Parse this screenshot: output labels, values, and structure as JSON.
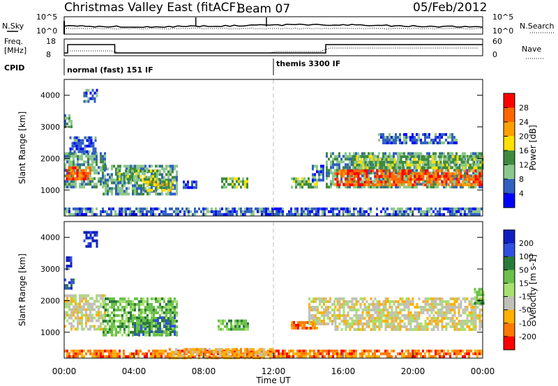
{
  "header": {
    "title": "Christmas Valley East (fitACF)",
    "beam": "Beam 07",
    "date": "05/Feb/2012"
  },
  "noise_panel": {
    "left_label": "N.Sky",
    "right_label": "N.Search",
    "left_ticks": [
      "10^5",
      "10^0"
    ],
    "right_ticks": [
      "10^5",
      "10^0"
    ],
    "spikes_hours": [
      7.55,
      11.6
    ]
  },
  "freq_panel": {
    "label_lines": [
      "Freq.",
      "[MHz]"
    ],
    "right_label": "Nave",
    "left_ticks": [
      "18",
      "8"
    ],
    "right_ticks": [
      "60",
      "0"
    ],
    "freq_steps": [
      {
        "from": 0.0,
        "to": 0.2,
        "mhz": 10
      },
      {
        "from": 0.2,
        "to": 2.9,
        "mhz": 16
      },
      {
        "from": 2.9,
        "to": 15.0,
        "mhz": 10
      },
      {
        "from": 15.0,
        "to": 24.0,
        "mhz": 16
      }
    ]
  },
  "cpid": {
    "label": "CPID",
    "segments": [
      {
        "from_hour": 0,
        "text": "normal (fast) 151 IF"
      },
      {
        "from_hour": 12,
        "text": "themis 3300 IF"
      }
    ]
  },
  "x_axis": {
    "label": "Time UT",
    "ticks": [
      "00:00",
      "04:00",
      "08:00",
      "12:00",
      "16:00",
      "20:00",
      "00:00"
    ],
    "range_hours": [
      0,
      24
    ]
  },
  "chart_data": [
    {
      "type": "heatmap",
      "name": "power",
      "ylabel": "Slant Range [km]",
      "y_ticks": [
        1000,
        2000,
        3000,
        4000
      ],
      "ylim": [
        180,
        4500
      ],
      "colorbar": {
        "label": "Power [dB]",
        "ticks": [
          "28",
          "24",
          "20",
          "16",
          "12",
          "8",
          "4"
        ],
        "colors": [
          "#ff0000",
          "#ff6600",
          "#ffa000",
          "#ffe000",
          "#3f8a3f",
          "#8cc78c",
          "#3060c0",
          "#0000ff"
        ]
      },
      "regions": [
        {
          "t0": 0.0,
          "t1": 2.3,
          "r0": 1100,
          "r1": 2200,
          "level": 5
        },
        {
          "t0": 0.1,
          "t1": 1.5,
          "r0": 1350,
          "r1": 1750,
          "level": 1
        },
        {
          "t0": 0.3,
          "t1": 1.8,
          "r0": 2200,
          "r1": 2700,
          "level": 6
        },
        {
          "t0": 0.0,
          "t1": 0.4,
          "r0": 3000,
          "r1": 3400,
          "level": 5
        },
        {
          "t0": 1.1,
          "t1": 1.9,
          "r0": 3800,
          "r1": 4200,
          "level": 6
        },
        {
          "t0": 2.2,
          "t1": 6.5,
          "r0": 900,
          "r1": 1800,
          "level": 5
        },
        {
          "t0": 4.5,
          "t1": 6.3,
          "r0": 950,
          "r1": 1300,
          "level": 3
        },
        {
          "t0": 3.0,
          "t1": 5.5,
          "r0": 1300,
          "r1": 1650,
          "level": 4
        },
        {
          "t0": 9.0,
          "t1": 10.5,
          "r0": 1100,
          "r1": 1400,
          "level": 4
        },
        {
          "t0": 6.8,
          "t1": 7.6,
          "r0": 1100,
          "r1": 1300,
          "level": 6
        },
        {
          "t0": 13.0,
          "t1": 14.5,
          "r0": 1100,
          "r1": 1400,
          "level": 4
        },
        {
          "t0": 14.2,
          "t1": 14.9,
          "r0": 1300,
          "r1": 1800,
          "level": 6
        },
        {
          "t0": 15.0,
          "t1": 24.0,
          "r0": 1100,
          "r1": 2200,
          "level": 5
        },
        {
          "t0": 15.5,
          "t1": 24.0,
          "r0": 1200,
          "r1": 1650,
          "level": 1
        },
        {
          "t0": 16.5,
          "t1": 24.0,
          "r0": 1700,
          "r1": 2100,
          "level": 4
        },
        {
          "t0": 18.0,
          "t1": 22.5,
          "r0": 2500,
          "r1": 2800,
          "level": 6
        },
        {
          "t0": 0.0,
          "t1": 24.0,
          "r0": 200,
          "r1": 450,
          "level": 6
        }
      ],
      "dashed_line_hour": 12
    },
    {
      "type": "heatmap",
      "name": "velocity",
      "ylabel": "Slant Range [km]",
      "y_ticks": [
        1000,
        2000,
        3000,
        4000
      ],
      "ylim": [
        180,
        4500
      ],
      "colorbar": {
        "label": "Velocity [m s-1]",
        "ticks": [
          "200",
          "100",
          "50",
          "15",
          "-15",
          "-50",
          "-100",
          "-200"
        ],
        "colors": [
          "#1020c0",
          "#3050e0",
          "#2a7a3a",
          "#6ac04a",
          "#a8e070",
          "#c0c0b8",
          "#ffb000",
          "#ff7a00",
          "#ff0000"
        ]
      },
      "regions": [
        {
          "t0": 0.0,
          "t1": 2.3,
          "r0": 1100,
          "r1": 2200,
          "level": 5
        },
        {
          "t0": 0.0,
          "t1": 0.5,
          "r0": 2400,
          "r1": 2700,
          "level": 1
        },
        {
          "t0": 0.1,
          "t1": 0.4,
          "r0": 3000,
          "r1": 3400,
          "level": 0
        },
        {
          "t0": 1.1,
          "t1": 1.9,
          "r0": 3700,
          "r1": 4200,
          "level": 0
        },
        {
          "t0": 2.2,
          "t1": 6.5,
          "r0": 900,
          "r1": 2100,
          "level": 3
        },
        {
          "t0": 4.0,
          "t1": 6.3,
          "r0": 950,
          "r1": 1500,
          "level": 2
        },
        {
          "t0": 8.8,
          "t1": 10.5,
          "r0": 1100,
          "r1": 1400,
          "level": 3
        },
        {
          "t0": 13.0,
          "t1": 14.5,
          "r0": 1100,
          "r1": 1350,
          "level": 7
        },
        {
          "t0": 14.0,
          "t1": 15.5,
          "r0": 1300,
          "r1": 2100,
          "level": 5
        },
        {
          "t0": 15.5,
          "t1": 24.0,
          "r0": 1100,
          "r1": 2100,
          "level": 5
        },
        {
          "t0": 23.5,
          "t1": 24.0,
          "r0": 1900,
          "r1": 2400,
          "level": 3
        },
        {
          "t0": 0.0,
          "t1": 24.0,
          "r0": 200,
          "r1": 450,
          "level": 7
        },
        {
          "t0": 6.0,
          "t1": 12.0,
          "r0": 200,
          "r1": 500,
          "level": 6
        }
      ],
      "dashed_line_hour": 12
    }
  ]
}
